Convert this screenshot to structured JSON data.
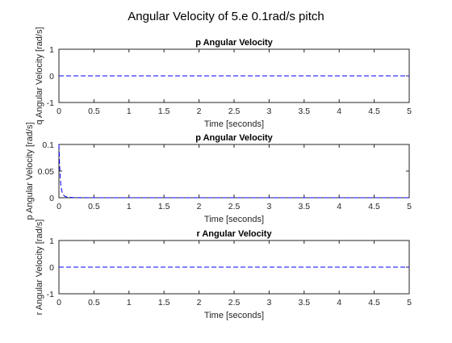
{
  "figure": {
    "title": "Angular Velocity of 5.e 0.1rad/s pitch"
  },
  "colors": {
    "series": "#0000ff",
    "axes": "#262626",
    "background": "#ffffff"
  },
  "chart_data": [
    {
      "type": "line",
      "title": "p Angular Velocity",
      "xlabel": "Time [seconds]",
      "ylabel": "q Angular Velocity [rad/s]",
      "xlim": [
        0,
        5
      ],
      "ylim": [
        -1,
        1
      ],
      "xticks": [
        "0",
        "0.5",
        "1",
        "1.5",
        "2",
        "2.5",
        "3",
        "3.5",
        "4",
        "4.5",
        "5"
      ],
      "yticks": [
        "-1",
        "0",
        "1"
      ],
      "grid": false,
      "series": [
        {
          "x": [
            0,
            5
          ],
          "y": [
            0,
            0
          ]
        }
      ]
    },
    {
      "type": "line",
      "title": "p Angular Velocity",
      "xlabel": "Time [seconds]",
      "ylabel": "p Angular Velocity [rad/s]",
      "xlim": [
        0,
        5
      ],
      "ylim": [
        0,
        0.1
      ],
      "xticks": [
        "0",
        "0.5",
        "1",
        "1.5",
        "2",
        "2.5",
        "3",
        "3.5",
        "4",
        "4.5",
        "5"
      ],
      "yticks": [
        "0",
        "0.05",
        "0.1"
      ],
      "grid": false,
      "series": [
        {
          "x": [
            0,
            0.01,
            0.02,
            0.03,
            0.05,
            0.08,
            0.12,
            0.2,
            0.5,
            1,
            2,
            3,
            4,
            5
          ],
          "y": [
            0.1,
            0.06,
            0.036,
            0.02,
            0.008,
            0.003,
            0.001,
            0.0003,
            0,
            0,
            0,
            0,
            0,
            0
          ]
        }
      ]
    },
    {
      "type": "line",
      "title": "r Angular Velocity",
      "xlabel": "Time [seconds]",
      "ylabel": "r Angular Velocity [rad/s]",
      "xlim": [
        0,
        5
      ],
      "ylim": [
        -1,
        1
      ],
      "xticks": [
        "0",
        "0.5",
        "1",
        "1.5",
        "2",
        "2.5",
        "3",
        "3.5",
        "4",
        "4.5",
        "5"
      ],
      "yticks": [
        "-1",
        "0",
        "1"
      ],
      "grid": false,
      "series": [
        {
          "x": [
            0,
            5
          ],
          "y": [
            0,
            0
          ]
        }
      ]
    }
  ]
}
